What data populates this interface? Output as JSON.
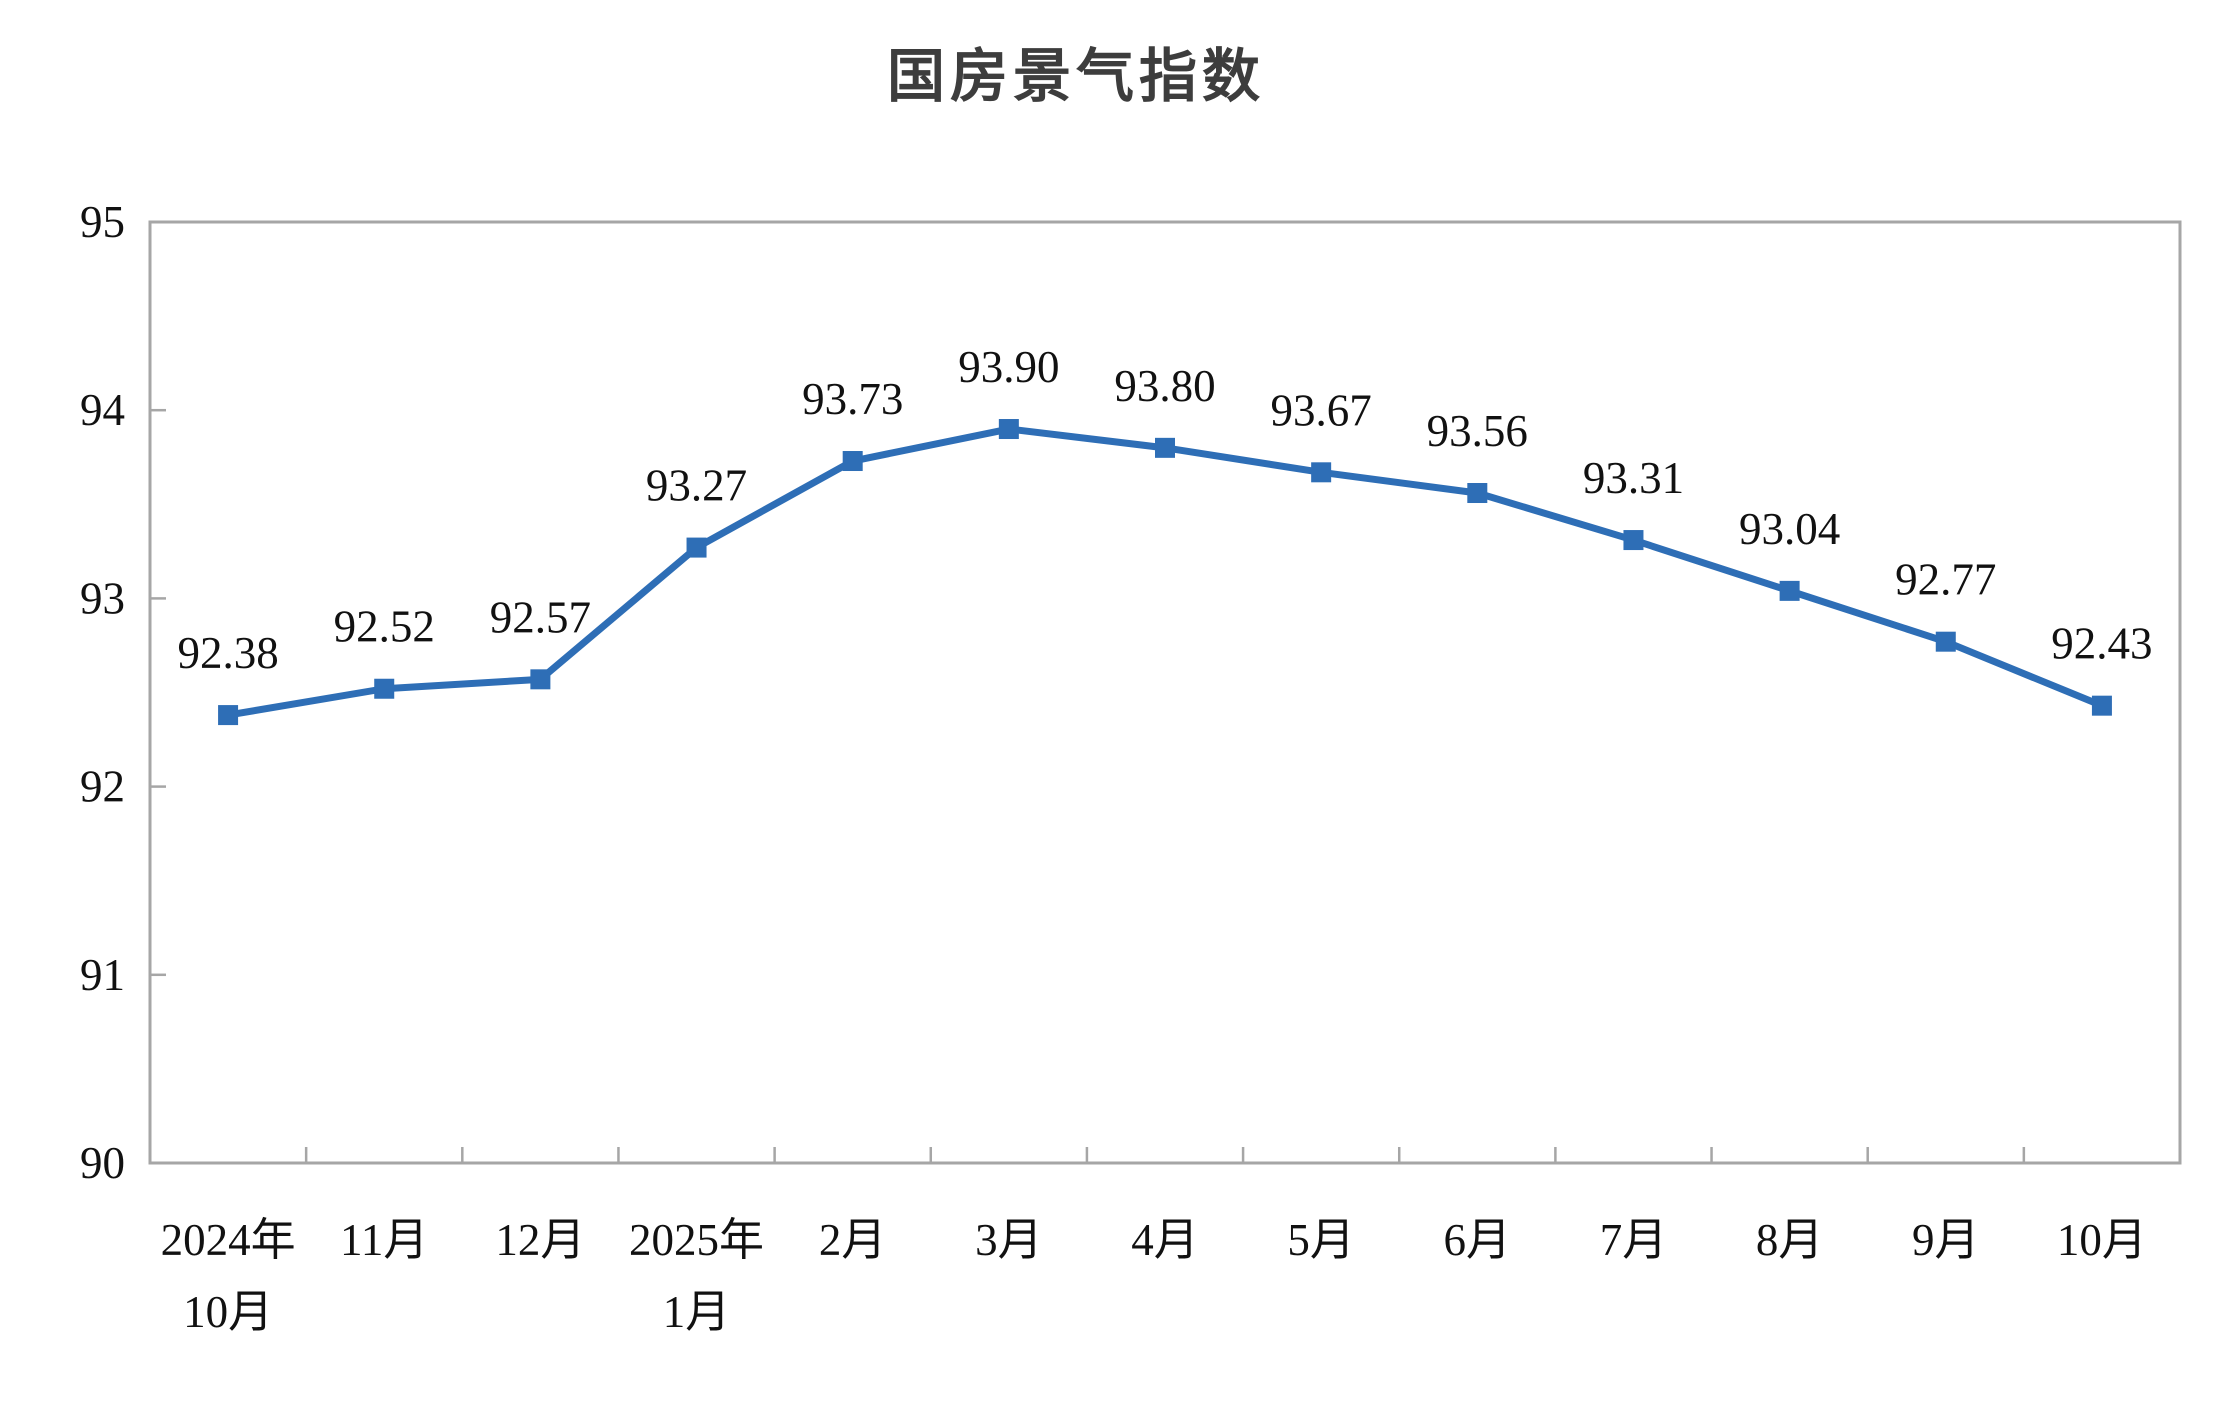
{
  "page": {
    "background": "#ffffff"
  },
  "chart_data": {
    "type": "line",
    "title": "国房景气指数",
    "categories": [
      [
        "2024年",
        "10月"
      ],
      [
        "11月"
      ],
      [
        "12月"
      ],
      [
        "2025年",
        "1月"
      ],
      [
        "2月"
      ],
      [
        "3月"
      ],
      [
        "4月"
      ],
      [
        "5月"
      ],
      [
        "6月"
      ],
      [
        "7月"
      ],
      [
        "8月"
      ],
      [
        "9月"
      ],
      [
        "10月"
      ]
    ],
    "values": [
      92.38,
      92.52,
      92.57,
      93.27,
      93.73,
      93.9,
      93.8,
      93.67,
      93.56,
      93.31,
      93.04,
      92.77,
      92.43
    ],
    "data_labels": [
      "92.38",
      "92.52",
      "92.57",
      "93.27",
      "93.73",
      "93.90",
      "93.80",
      "93.67",
      "93.56",
      "93.31",
      "93.04",
      "92.77",
      "92.43"
    ],
    "xlabel": "",
    "ylabel": "",
    "ylim": [
      90,
      95
    ],
    "y_ticks": [
      90,
      91,
      92,
      93,
      94,
      95
    ],
    "grid": false,
    "legend": "none",
    "line_color": "#2E6EB6",
    "marker": "square",
    "marker_color": "#2E6EB6",
    "axis_color": "#A6A6A6",
    "label_color": "#111111",
    "title_color": "#3d3d3d"
  }
}
